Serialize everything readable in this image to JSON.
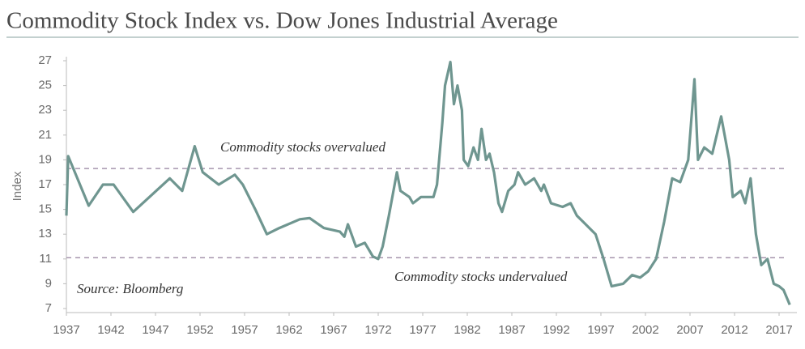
{
  "chart_data": {
    "type": "line",
    "title": "Commodity Stock Index vs. Dow Jones Industrial Average",
    "ylabel": "Index",
    "annotations": [
      "Commodity stocks overvalued",
      "Commodity stocks undervalued",
      "Source: Bloomberg"
    ],
    "reference_lines": [
      18.3,
      11.1
    ],
    "reference_color": "#a695ad",
    "x": [
      1937.0,
      1937.2,
      1939.5,
      1941.1,
      1942.3,
      1944.5,
      1948.6,
      1950.0,
      1951.4,
      1952.3,
      1954.1,
      1955.9,
      1956.8,
      1958.2,
      1959.5,
      1960.9,
      1963.2,
      1964.3,
      1965.9,
      1967.7,
      1968.2,
      1968.6,
      1969.5,
      1970.5,
      1971.4,
      1972.0,
      1972.5,
      1973.2,
      1974.1,
      1974.5,
      1975.5,
      1975.9,
      1976.8,
      1978.2,
      1978.6,
      1979.2,
      1979.5,
      1980.1,
      1980.5,
      1980.9,
      1981.4,
      1981.6,
      1982.1,
      1982.7,
      1983.2,
      1983.6,
      1984.1,
      1984.5,
      1985.0,
      1985.5,
      1985.9,
      1986.6,
      1987.3,
      1987.7,
      1988.5,
      1989.5,
      1990.3,
      1990.6,
      1991.4,
      1992.7,
      1993.6,
      1994.3,
      1995.0,
      1996.4,
      1997.3,
      1998.2,
      1999.5,
      2000.5,
      2001.4,
      2002.3,
      2003.2,
      2004.1,
      2005.0,
      2005.9,
      2006.8,
      2007.5,
      2007.9,
      2008.6,
      2009.5,
      2010.5,
      2011.4,
      2011.8,
      2012.7,
      2013.2,
      2013.8,
      2014.4,
      2015.0,
      2015.7,
      2016.4,
      2017.0,
      2017.5,
      2018.2
    ],
    "series": [
      {
        "name": "Commodity Stock Index",
        "color": "#6f9690",
        "values": [
          14.5,
          19.3,
          15.3,
          17.0,
          17.0,
          14.8,
          17.5,
          16.5,
          20.1,
          18.0,
          17.0,
          17.8,
          17.0,
          15.0,
          13.0,
          13.5,
          14.2,
          14.3,
          13.5,
          13.2,
          12.8,
          13.8,
          12.0,
          12.3,
          11.2,
          11.0,
          12.0,
          14.5,
          18.0,
          16.5,
          16.0,
          15.5,
          16.0,
          16.0,
          17.0,
          22.0,
          25.0,
          26.9,
          23.5,
          25.0,
          23.0,
          19.0,
          18.5,
          20.0,
          19.0,
          21.5,
          19.0,
          19.5,
          18.0,
          15.5,
          14.8,
          16.5,
          17.0,
          18.0,
          17.0,
          17.5,
          16.5,
          17.0,
          15.5,
          15.2,
          15.5,
          14.5,
          14.0,
          13.0,
          11.0,
          8.8,
          9.0,
          9.7,
          9.5,
          10.0,
          11.0,
          14.0,
          17.5,
          17.2,
          19.0,
          25.5,
          19.0,
          20.0,
          19.5,
          22.5,
          19.0,
          16.0,
          16.5,
          15.5,
          17.5,
          13.0,
          10.5,
          11.0,
          9.0,
          8.8,
          8.5,
          7.3
        ]
      }
    ],
    "xlim": [
      1937,
      2019
    ],
    "xticks": [
      1937,
      1942,
      1947,
      1952,
      1957,
      1962,
      1967,
      1972,
      1977,
      1982,
      1987,
      1992,
      1997,
      2002,
      2007,
      2012,
      2017
    ],
    "ylim": [
      7,
      27
    ],
    "yticks": [
      7,
      9,
      11,
      13,
      15,
      17,
      19,
      21,
      23,
      25,
      27
    ],
    "grid": false
  }
}
